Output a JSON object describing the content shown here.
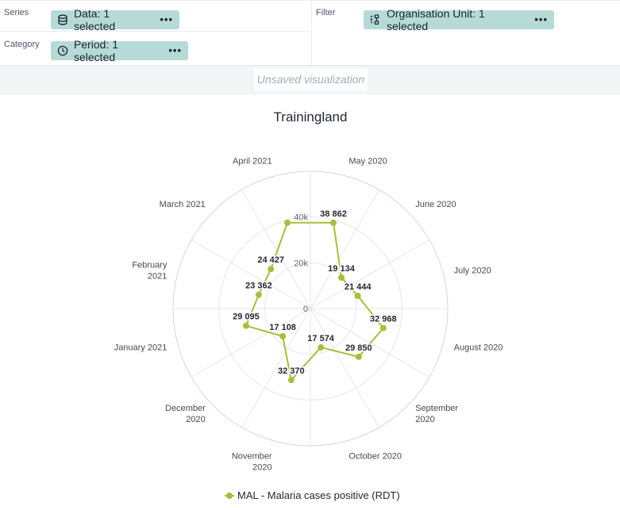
{
  "layout": {
    "series_label": "Series",
    "category_label": "Category",
    "filter_label": "Filter",
    "series_chip": "Data: 1 selected",
    "category_chip": "Period: 1 selected",
    "filter_chip": "Organisation Unit: 1 selected",
    "more_glyph": "•••"
  },
  "visualization_title": "Unsaved visualization",
  "icons": {
    "data": "database-icon",
    "period": "clock-icon",
    "orgunit": "org-tree-icon"
  },
  "colors": {
    "series": "#a9be3b",
    "chip": "#b6dbd7",
    "grid": "#e6e6e6",
    "outer_ring": "#ccd6eb"
  },
  "chart_data": {
    "type": "radar",
    "title": "Trainingland",
    "categories": [
      "May 2020",
      "June 2020",
      "July 2020",
      "August 2020",
      "September 2020",
      "October 2020",
      "November 2020",
      "December 2020",
      "January 2021",
      "February 2021",
      "March 2021",
      "April 2021"
    ],
    "category_lines": [
      [
        "May 2020"
      ],
      [
        "June 2020"
      ],
      [
        "July 2020"
      ],
      [
        "August 2020"
      ],
      [
        "September",
        "2020"
      ],
      [
        "October 2020"
      ],
      [
        "November",
        "2020"
      ],
      [
        "December",
        "2020"
      ],
      [
        "January 2021"
      ],
      [
        "February",
        "2021"
      ],
      [
        "March 2021"
      ],
      [
        "April 2021"
      ]
    ],
    "series": [
      {
        "name": "MAL - Malaria cases positive (RDT)",
        "values": [
          38862,
          19134,
          21444,
          32968,
          29850,
          17574,
          32370,
          17108,
          29095,
          23362,
          24427,
          38862
        ]
      }
    ],
    "data_labels": [
      "38 862",
      "19 134",
      "21 444",
      "32 968",
      "29 850",
      "17 574",
      "32 370",
      "17 108",
      "29 095",
      "23 362",
      "24 427",
      ""
    ],
    "radial_ticks": [
      0,
      20000,
      40000
    ],
    "radial_tick_labels": [
      "0",
      "20k",
      "40k"
    ],
    "rmax": 60000,
    "legend_position": "bottom"
  }
}
